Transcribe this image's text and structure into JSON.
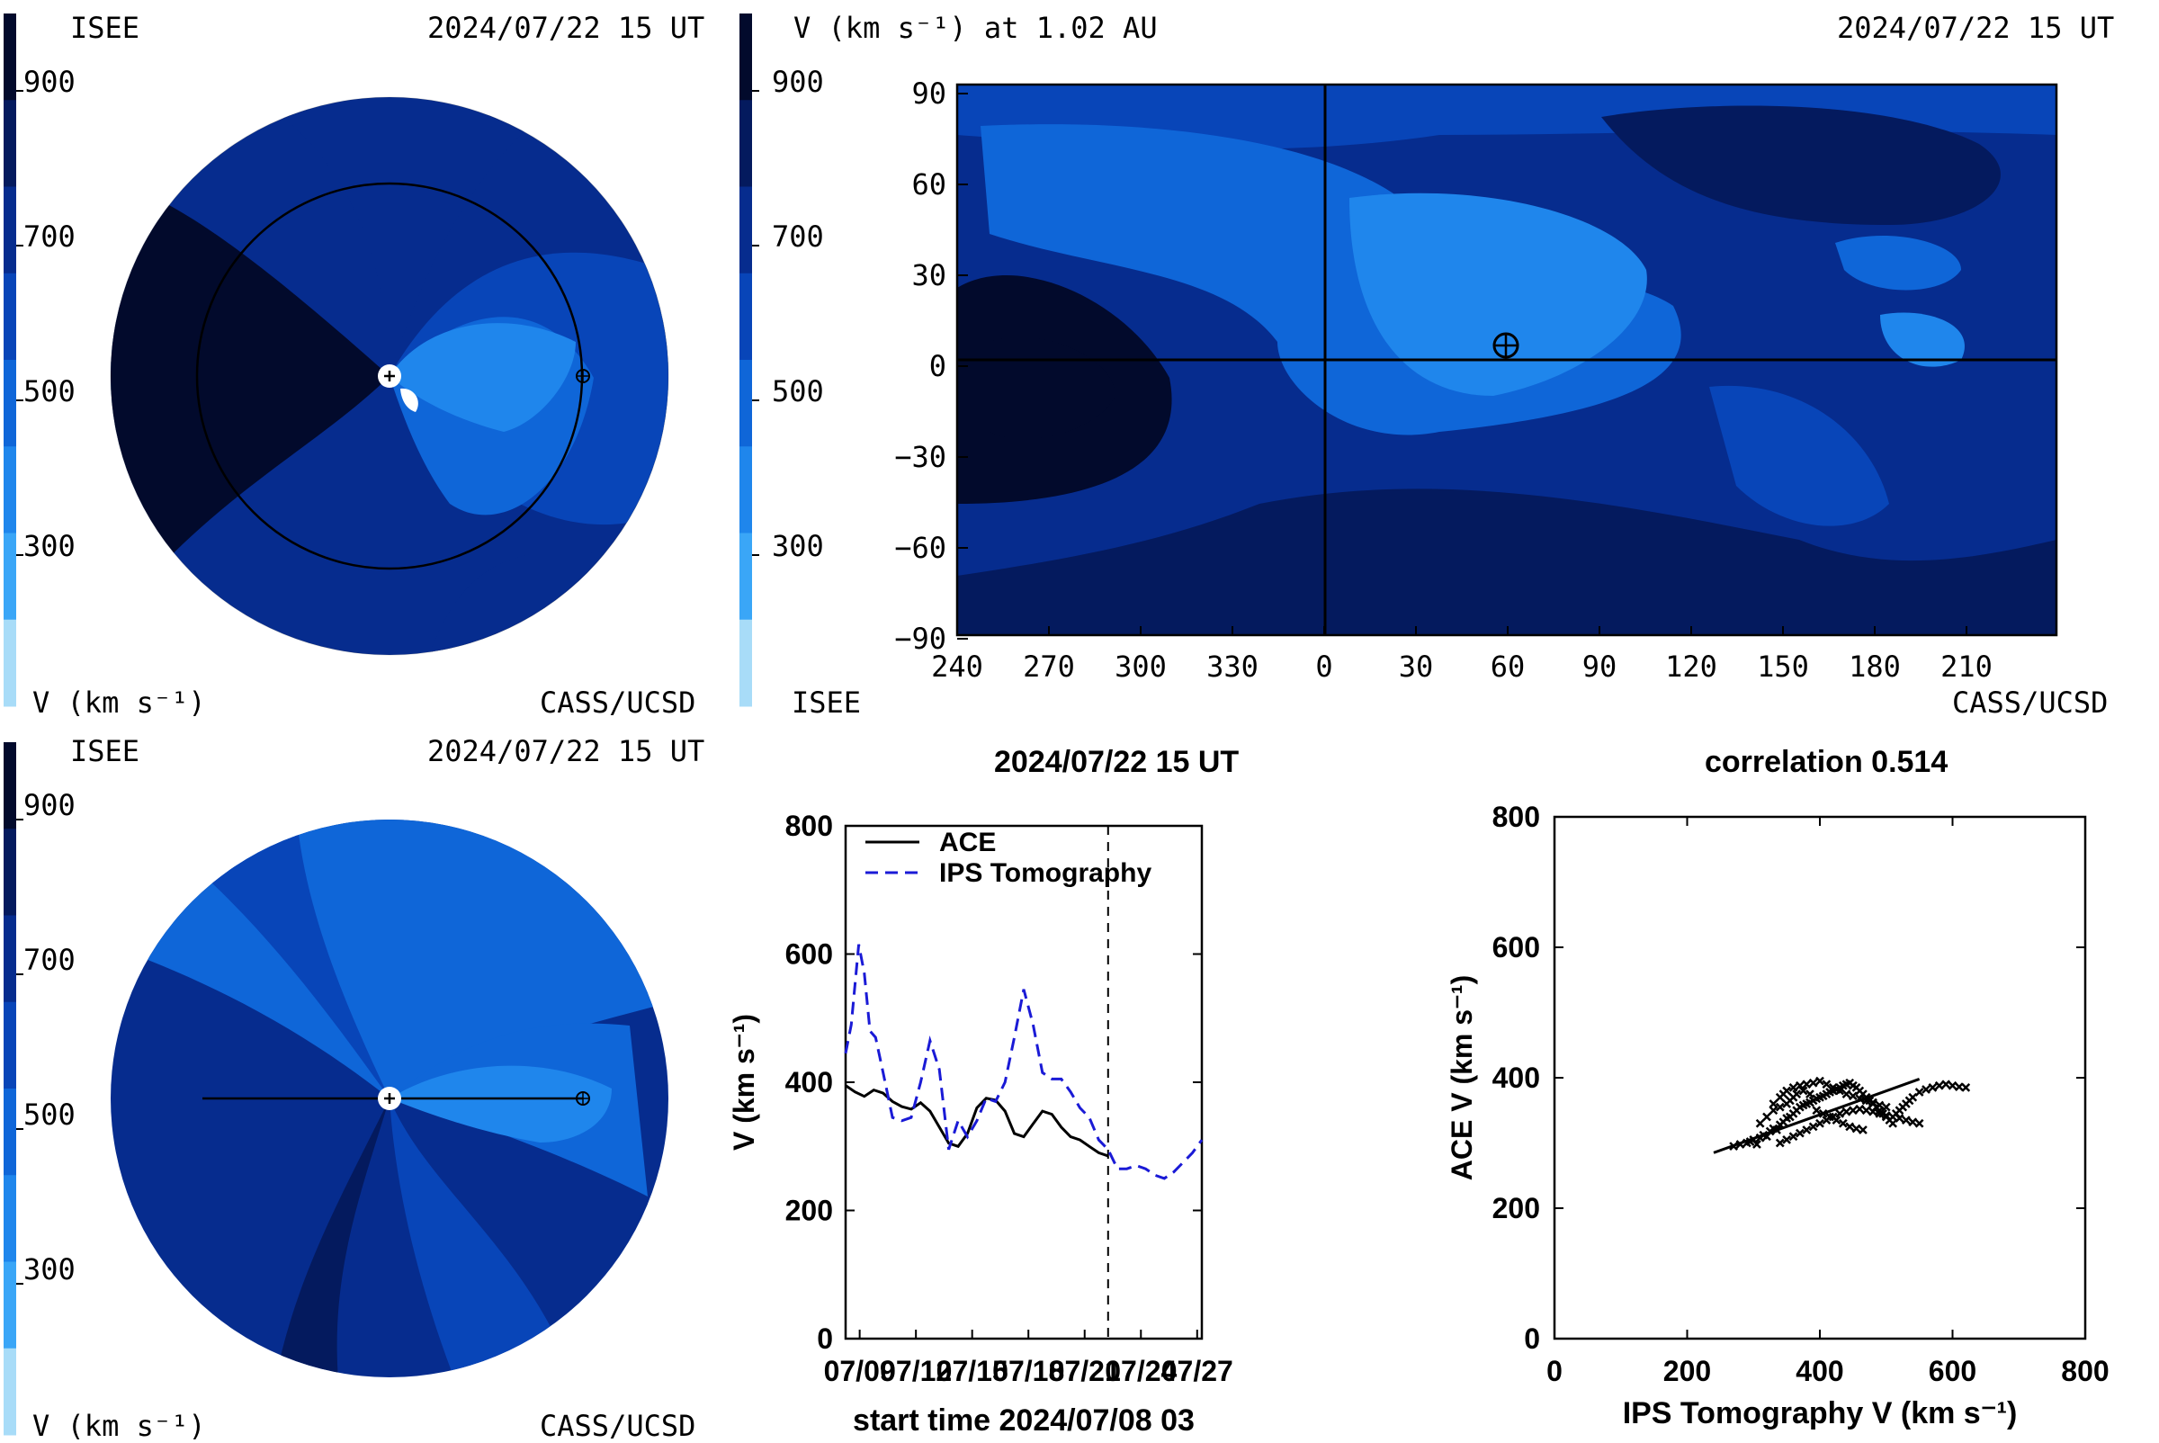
{
  "colors": {
    "bg": "#ffffff",
    "scale": [
      "#a8dcf8",
      "#3aa6f7",
      "#1f86ec",
      "#0f66d8",
      "#0845b8",
      "#062c8e",
      "#041a5e",
      "#020a2c"
    ],
    "ace_line": "#000000",
    "ips_line": "#1a1ad6"
  },
  "panel_top_left": {
    "org": "ISEE",
    "datetime": "2024/07/22 15 UT",
    "credit": "CASS/UCSD",
    "unit_label": "V (km s⁻¹)",
    "scale_ticks": [
      "900",
      "700",
      "500",
      "300"
    ]
  },
  "panel_bottom_left": {
    "org": "ISEE",
    "datetime": "2024/07/22 15 UT",
    "credit": "CASS/UCSD",
    "unit_label": "V (km s⁻¹)",
    "scale_ticks": [
      "900",
      "700",
      "500",
      "300"
    ]
  },
  "panel_map": {
    "title": "V (km s⁻¹) at 1.02 AU",
    "datetime": "2024/07/22 15 UT",
    "left_credit": "ISEE",
    "credit": "CASS/UCSD",
    "scale_ticks": [
      "900",
      "700",
      "500",
      "300"
    ],
    "x_ticks": [
      "240",
      "270",
      "300",
      "330",
      "0",
      "30",
      "60",
      "90",
      "120",
      "150",
      "180",
      "210"
    ],
    "y_ticks": [
      "90",
      "60",
      "30",
      "0",
      "−30",
      "−60",
      "−90"
    ]
  },
  "chart_data": [
    {
      "type": "line",
      "title": "2024/07/22 15 UT",
      "xlabel": "start time 2024/07/08 03",
      "ylabel": "V (km s⁻¹)",
      "x_ticks": [
        "07/09",
        "07/12",
        "07/15",
        "07/18",
        "07/21",
        "07/24",
        "07/27"
      ],
      "y_ticks": [
        "0",
        "200",
        "400",
        "600",
        "800"
      ],
      "ylim": [
        0,
        800
      ],
      "xlim_days": [
        0,
        19
      ],
      "current_time_marker_day": 14.0,
      "legend": "top-left",
      "series": [
        {
          "name": "ACE",
          "style": "solid",
          "x_days": [
            0.0,
            0.5,
            1.0,
            1.5,
            2.0,
            2.5,
            3.0,
            3.5,
            4.0,
            4.5,
            5.0,
            5.5,
            6.0,
            6.5,
            7.0,
            7.5,
            8.0,
            8.5,
            9.0,
            9.5,
            10.0,
            10.5,
            11.0,
            11.5,
            12.0,
            12.5,
            13.0,
            13.5,
            14.0
          ],
          "values": [
            395,
            385,
            378,
            388,
            383,
            370,
            362,
            358,
            368,
            355,
            330,
            305,
            300,
            320,
            360,
            375,
            372,
            355,
            320,
            315,
            335,
            355,
            350,
            330,
            315,
            310,
            300,
            290,
            285
          ]
        },
        {
          "name": "IPS Tomography",
          "style": "dashed",
          "x_days": [
            0.0,
            0.3,
            0.7,
            1.0,
            1.3,
            1.6,
            2.0,
            2.5,
            3.0,
            3.5,
            4.0,
            4.5,
            5.0,
            5.5,
            6.0,
            6.5,
            7.0,
            7.5,
            8.0,
            8.5,
            9.0,
            9.5,
            10.0,
            10.5,
            11.0,
            11.5,
            12.0,
            12.5,
            13.0,
            13.5,
            14.0,
            14.5,
            15.0,
            15.5,
            16.0,
            16.5,
            17.0,
            17.5,
            18.0,
            18.5,
            19.0
          ],
          "values": [
            445,
            490,
            615,
            570,
            480,
            470,
            415,
            345,
            340,
            345,
            400,
            465,
            420,
            295,
            340,
            315,
            340,
            375,
            370,
            400,
            470,
            545,
            490,
            415,
            405,
            405,
            385,
            360,
            345,
            310,
            295,
            265,
            265,
            270,
            265,
            255,
            250,
            260,
            275,
            290,
            310
          ]
        }
      ]
    },
    {
      "type": "scatter",
      "title": "correlation 0.514",
      "xlabel": "IPS Tomography V (km s⁻¹)",
      "ylabel": "ACE V (km s⁻¹)",
      "x_ticks": [
        "0",
        "200",
        "400",
        "600",
        "800"
      ],
      "y_ticks": [
        "0",
        "200",
        "400",
        "600",
        "800"
      ],
      "xlim": [
        0,
        800
      ],
      "ylim": [
        0,
        800
      ],
      "fit_line": {
        "x": [
          240,
          550
        ],
        "y": [
          285,
          398
        ]
      },
      "points": [
        [
          270,
          295
        ],
        [
          280,
          298
        ],
        [
          290,
          300
        ],
        [
          295,
          302
        ],
        [
          300,
          305
        ],
        [
          305,
          298
        ],
        [
          310,
          308
        ],
        [
          315,
          312
        ],
        [
          320,
          310
        ],
        [
          325,
          318
        ],
        [
          330,
          322
        ],
        [
          335,
          320
        ],
        [
          340,
          328
        ],
        [
          345,
          332
        ],
        [
          350,
          338
        ],
        [
          355,
          340
        ],
        [
          360,
          345
        ],
        [
          365,
          350
        ],
        [
          370,
          355
        ],
        [
          375,
          358
        ],
        [
          380,
          360
        ],
        [
          385,
          362
        ],
        [
          390,
          365
        ],
        [
          395,
          368
        ],
        [
          400,
          370
        ],
        [
          405,
          372
        ],
        [
          410,
          375
        ],
        [
          415,
          378
        ],
        [
          420,
          380
        ],
        [
          425,
          382
        ],
        [
          430,
          385
        ],
        [
          435,
          388
        ],
        [
          440,
          390
        ],
        [
          445,
          392
        ],
        [
          450,
          388
        ],
        [
          455,
          385
        ],
        [
          460,
          380
        ],
        [
          465,
          375
        ],
        [
          470,
          370
        ],
        [
          475,
          365
        ],
        [
          480,
          360
        ],
        [
          485,
          355
        ],
        [
          490,
          350
        ],
        [
          495,
          345
        ],
        [
          500,
          340
        ],
        [
          505,
          335
        ],
        [
          510,
          330
        ],
        [
          515,
          345
        ],
        [
          520,
          350
        ],
        [
          525,
          355
        ],
        [
          530,
          360
        ],
        [
          535,
          365
        ],
        [
          540,
          370
        ],
        [
          550,
          378
        ],
        [
          560,
          382
        ],
        [
          570,
          385
        ],
        [
          580,
          388
        ],
        [
          590,
          390
        ],
        [
          600,
          388
        ],
        [
          610,
          386
        ],
        [
          620,
          385
        ],
        [
          330,
          360
        ],
        [
          340,
          370
        ],
        [
          345,
          375
        ],
        [
          350,
          380
        ],
        [
          360,
          385
        ],
        [
          370,
          388
        ],
        [
          380,
          390
        ],
        [
          390,
          392
        ],
        [
          400,
          395
        ],
        [
          410,
          390
        ],
        [
          420,
          385
        ],
        [
          430,
          380
        ],
        [
          440,
          375
        ],
        [
          450,
          372
        ],
        [
          460,
          368
        ],
        [
          470,
          365
        ],
        [
          480,
          362
        ],
        [
          490,
          358
        ],
        [
          500,
          355
        ],
        [
          340,
          300
        ],
        [
          350,
          305
        ],
        [
          360,
          310
        ],
        [
          370,
          315
        ],
        [
          380,
          320
        ],
        [
          390,
          325
        ],
        [
          400,
          330
        ],
        [
          410,
          335
        ],
        [
          420,
          340
        ],
        [
          430,
          345
        ],
        [
          440,
          348
        ],
        [
          450,
          350
        ],
        [
          460,
          352
        ],
        [
          470,
          350
        ],
        [
          480,
          348
        ],
        [
          490,
          345
        ],
        [
          500,
          342
        ],
        [
          510,
          340
        ],
        [
          520,
          338
        ],
        [
          530,
          335
        ],
        [
          540,
          332
        ],
        [
          550,
          330
        ],
        [
          310,
          330
        ],
        [
          320,
          340
        ],
        [
          330,
          350
        ],
        [
          340,
          355
        ],
        [
          350,
          360
        ],
        [
          355,
          365
        ],
        [
          360,
          370
        ],
        [
          365,
          375
        ],
        [
          375,
          380
        ],
        [
          385,
          375
        ],
        [
          395,
          350
        ],
        [
          405,
          345
        ],
        [
          415,
          340
        ],
        [
          425,
          335
        ],
        [
          435,
          330
        ],
        [
          445,
          325
        ],
        [
          455,
          322
        ],
        [
          465,
          320
        ]
      ]
    }
  ]
}
